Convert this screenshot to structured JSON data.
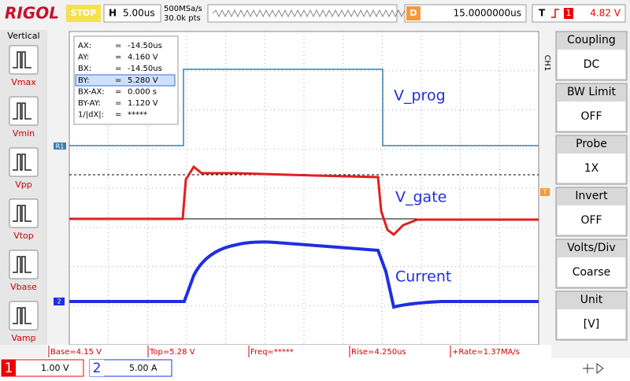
{
  "header": {
    "logo": "RIGOL",
    "status": "STOP",
    "timebase_label": "H",
    "timebase": "5.00us",
    "sample_rate": "500MSa/s",
    "memory_depth": "30.0k pts",
    "delay_label": "D",
    "delay": "15.0000000us",
    "trigger_label": "T",
    "trigger_channel": "1",
    "trigger_level": "4.82 V"
  },
  "left_menu": {
    "title": "Vertical",
    "items": [
      "Vmax",
      "Vmin",
      "Vpp",
      "Vtop",
      "Vbase",
      "Vamp"
    ]
  },
  "cursor_panel": {
    "rows": [
      [
        "AX:",
        "=",
        "-14.50us"
      ],
      [
        "AY:",
        "=",
        "4.160 V"
      ],
      [
        "BX:",
        "=",
        "-14.50us"
      ],
      [
        "BY:",
        "=",
        "5.280 V"
      ],
      [
        "BX-AX:",
        "=",
        "0.000 s"
      ],
      [
        "BY-AY:",
        "=",
        "1.120 V"
      ],
      [
        "1/|dX|:",
        "=",
        "*****"
      ]
    ]
  },
  "trace_labels": [
    "V_prog",
    "V_gate",
    "Current"
  ],
  "markers": {
    "ref": "R1",
    "ch2": "2",
    "trigger": "T"
  },
  "measurements": [
    "Base=4.15 V",
    "Top=5.28 V",
    "Freq=*****",
    "Rise=4.250us",
    "+Rate=1.37MA/s"
  ],
  "channels": [
    {
      "number": "1",
      "scale": "1.00 V"
    },
    {
      "number": "2",
      "scale": "5.00 A"
    }
  ],
  "right_menu": {
    "channel": "CH1",
    "items": [
      {
        "title": "Coupling",
        "value": "DC"
      },
      {
        "title": "BW Limit",
        "value": "OFF"
      },
      {
        "title": "Probe",
        "value": "1X"
      },
      {
        "title": "Invert",
        "value": "OFF"
      },
      {
        "title": "Volts/Div",
        "value": "Coarse"
      },
      {
        "title": "Unit",
        "value": "[V]"
      }
    ]
  }
}
